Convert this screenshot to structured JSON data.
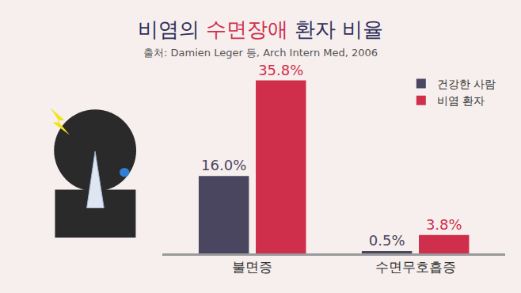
{
  "chart_data": {
    "type": "bar",
    "title": "비염의 수면장애 환자 비율",
    "subtitle": "출처: Damien Leger 등, Arch Intern Med, 2006",
    "categories": [
      "불면증",
      "수면무호흡증"
    ],
    "series": [
      {
        "name": "건강한 사람",
        "color": "#4b4660",
        "values": [
          16.0,
          0.5
        ],
        "value_labels": [
          "16.0%",
          "0.5%"
        ]
      },
      {
        "name": "비염 환자",
        "color": "#cf2f4b",
        "values": [
          35.8,
          3.8
        ],
        "value_labels": [
          "35.8%",
          "3.8%"
        ]
      }
    ],
    "data_labels": true,
    "tick_labels": "x",
    "legend": "upper right",
    "grid": false
  }
}
